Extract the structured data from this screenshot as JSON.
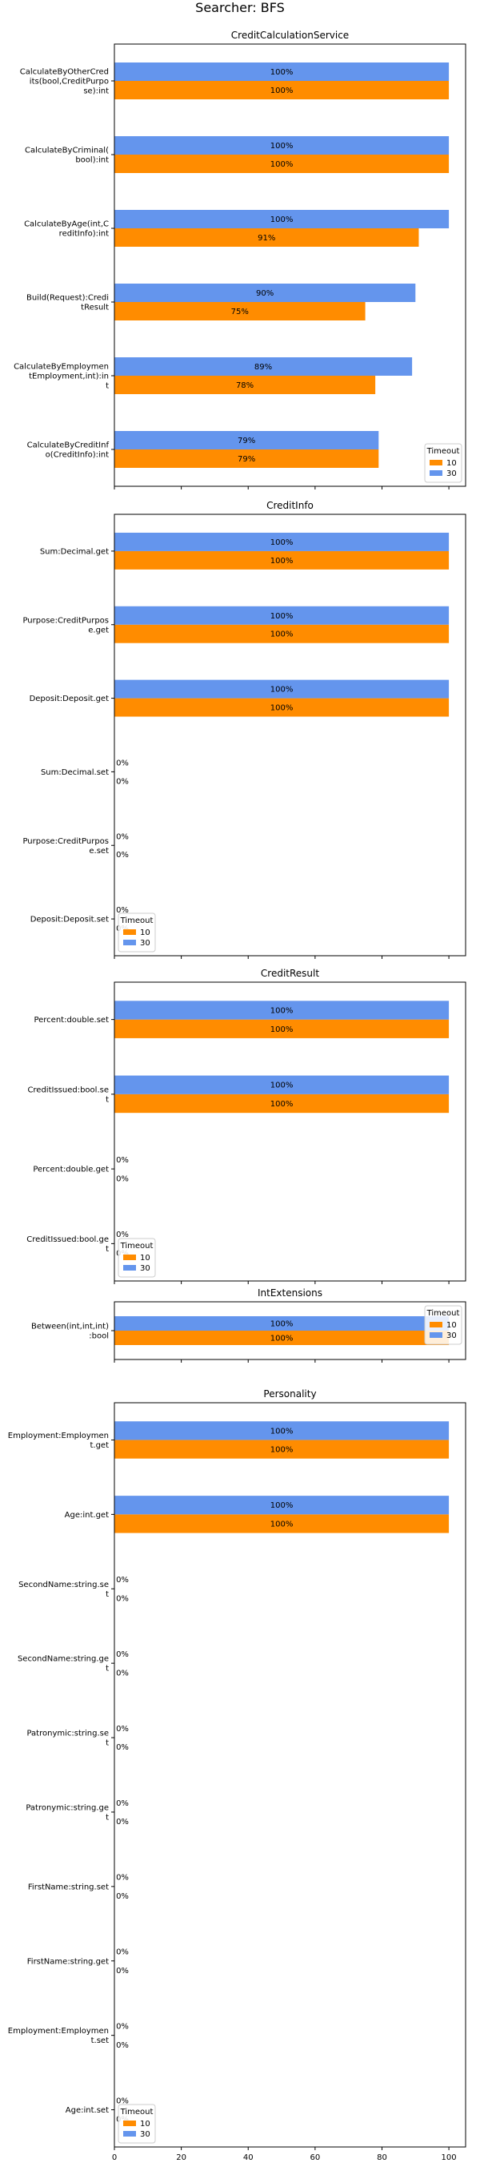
{
  "figure_title": "Searcher: BFS",
  "colors": {
    "10": "#ff8c00",
    "30": "#6495ed"
  },
  "chart_data": [
    {
      "type": "bar",
      "orientation": "horizontal",
      "title": "CreditCalculationService",
      "categories": [
        "CalculateByOtherCred\nits(bool,CreditPurpo\nse):int",
        "CalculateByCriminal(\nbool):int",
        "CalculateByAge(int,C\nreditInfo):int",
        "Build(Request):Credi\ntResult",
        "CalculateByEmploymen\ntEmployment,int):in\nt",
        "CalculateByCreditInf\no(CreditInfo):int"
      ],
      "series": [
        {
          "name": "10",
          "values": [
            100,
            100,
            91,
            75,
            78,
            79
          ],
          "labels": [
            "100%",
            "100%",
            "91%",
            "75%",
            "78%",
            "79%"
          ]
        },
        {
          "name": "30",
          "values": [
            100,
            100,
            100,
            90,
            89,
            79
          ],
          "labels": [
            "100%",
            "100%",
            "100%",
            "90%",
            "89%",
            "79%"
          ]
        }
      ],
      "xlim": [
        0,
        105
      ],
      "legend": {
        "title": "Timeout",
        "placement": "lower-right"
      }
    },
    {
      "type": "bar",
      "orientation": "horizontal",
      "title": "CreditInfo",
      "categories": [
        "Sum:Decimal.get",
        "Purpose:CreditPurpos\ne.get",
        "Deposit:Deposit.get",
        "Sum:Decimal.set",
        "Purpose:CreditPurpos\ne.set",
        "Deposit:Deposit.set"
      ],
      "series": [
        {
          "name": "10",
          "values": [
            100,
            100,
            100,
            0,
            0,
            0
          ],
          "labels": [
            "100%",
            "100%",
            "100%",
            "0%",
            "0%",
            "0%"
          ]
        },
        {
          "name": "30",
          "values": [
            100,
            100,
            100,
            0,
            0,
            0
          ],
          "labels": [
            "100%",
            "100%",
            "100%",
            "0%",
            "0%",
            "0%"
          ]
        }
      ],
      "xlim": [
        0,
        105
      ],
      "legend": {
        "title": "Timeout",
        "placement": "lower-left"
      }
    },
    {
      "type": "bar",
      "orientation": "horizontal",
      "title": "CreditResult",
      "categories": [
        "Percent:double.set",
        "CreditIssued:bool.se\nt",
        "Percent:double.get",
        "CreditIssued:bool.ge\nt"
      ],
      "series": [
        {
          "name": "10",
          "values": [
            100,
            100,
            0,
            0
          ],
          "labels": [
            "100%",
            "100%",
            "0%",
            "0%"
          ]
        },
        {
          "name": "30",
          "values": [
            100,
            100,
            0,
            0
          ],
          "labels": [
            "100%",
            "100%",
            "0%",
            "0%"
          ]
        }
      ],
      "xlim": [
        0,
        105
      ],
      "legend": {
        "title": "Timeout",
        "placement": "lower-left"
      }
    },
    {
      "type": "bar",
      "orientation": "horizontal",
      "title": "IntExtensions",
      "categories": [
        "Between(int,int,int)\n:bool"
      ],
      "series": [
        {
          "name": "10",
          "values": [
            100
          ],
          "labels": [
            "100%"
          ]
        },
        {
          "name": "30",
          "values": [
            100
          ],
          "labels": [
            "100%"
          ]
        }
      ],
      "xlim": [
        0,
        105
      ],
      "legend": {
        "title": "Timeout",
        "placement": "upper-right"
      }
    },
    {
      "type": "bar",
      "orientation": "horizontal",
      "title": "Personality",
      "categories": [
        "Employment:Employmen\nt.get",
        "Age:int.get",
        "SecondName:string.se\nt",
        "SecondName:string.ge\nt",
        "Patronymic:string.se\nt",
        "Patronymic:string.ge\nt",
        "FirstName:string.set",
        "FirstName:string.get",
        "Employment:Employmen\nt.set",
        "Age:int.set"
      ],
      "series": [
        {
          "name": "10",
          "values": [
            100,
            100,
            0,
            0,
            0,
            0,
            0,
            0,
            0,
            0
          ],
          "labels": [
            "100%",
            "100%",
            "0%",
            "0%",
            "0%",
            "0%",
            "0%",
            "0%",
            "0%",
            "0%"
          ]
        },
        {
          "name": "30",
          "values": [
            100,
            100,
            0,
            0,
            0,
            0,
            0,
            0,
            0,
            0
          ],
          "labels": [
            "100%",
            "100%",
            "0%",
            "0%",
            "0%",
            "0%",
            "0%",
            "0%",
            "0%",
            "0%"
          ]
        }
      ],
      "xlim": [
        0,
        105
      ],
      "xticks": [
        "0",
        "20",
        "40",
        "60",
        "80",
        "100"
      ],
      "legend": {
        "title": "Timeout",
        "placement": "lower-left"
      }
    }
  ]
}
